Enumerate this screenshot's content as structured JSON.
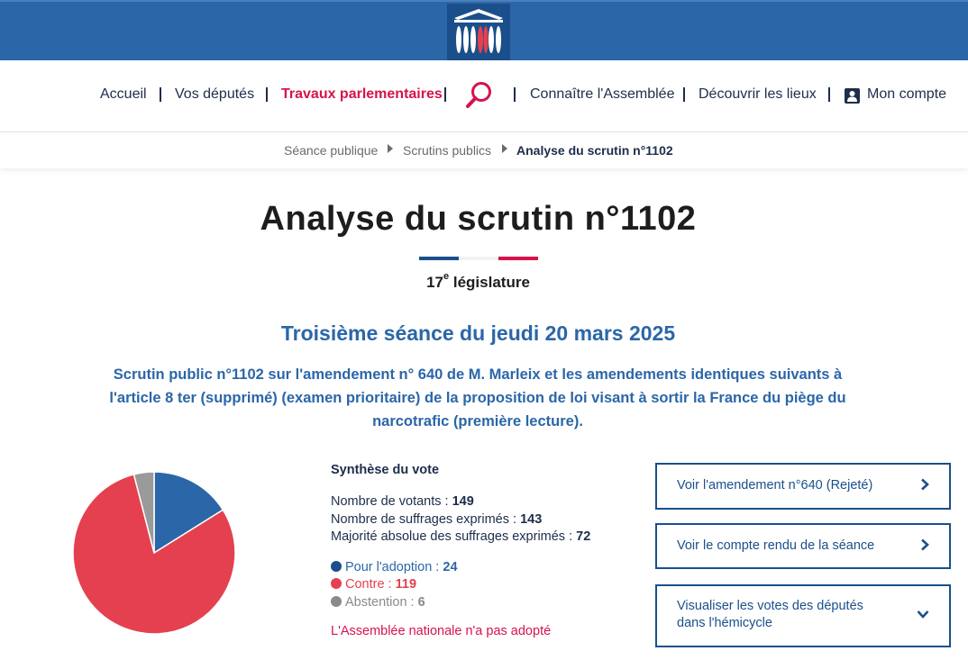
{
  "header": {
    "logo_icon": "assemblee-nationale-logo"
  },
  "nav": {
    "items": [
      "Accueil",
      "Vos députés",
      "Travaux parlementaires",
      "Connaître l'Assemblée",
      "Découvrir les lieux",
      "Mon compte"
    ],
    "search_icon": "search-icon",
    "account_icon": "user-icon",
    "active_color": "#d6134c"
  },
  "breadcrumb": {
    "items": [
      "Séance publique",
      "Scrutins publics",
      "Analyse du scrutin n°1102"
    ]
  },
  "page": {
    "title": "Analyse du scrutin n°1102",
    "legislature_num": "17",
    "legislature_sup": "e",
    "legislature_text": "législature",
    "seance": "Troisième séance du jeudi 20 mars 2025",
    "description": "Scrutin public n°1102 sur l'amendement n° 640 de M. Marleix et les amendements identiques suivants à l'article 8 ter (supprimé) (examen prioritaire) de la proposition de loi visant à sortir la France du piège du narcotrafic (première lecture)."
  },
  "synthese": {
    "title": "Synthèse du vote",
    "votants_label": "Nombre de votants :",
    "votants": "149",
    "exprimes_label": "Nombre de suffrages exprimés :",
    "exprimes": "143",
    "majorite_label": "Majorité absolue des suffrages exprimés :",
    "majorite": "72",
    "pour_label": "Pour l'adoption :",
    "pour": "24",
    "contre_label": "Contre :",
    "contre": "119",
    "abstention_label": "Abstention :",
    "abstention": "6",
    "result": "L'Assemblée nationale n'a pas adopté"
  },
  "colors": {
    "pour": "#2b66a8",
    "contre": "#e5404f",
    "abstention": "#9a9a9a",
    "brand": "#2b66a8",
    "accent": "#d6134c"
  },
  "chart_data": {
    "type": "pie",
    "categories": [
      "Pour l'adoption",
      "Contre",
      "Abstention"
    ],
    "values": [
      24,
      119,
      6
    ]
  },
  "actions": {
    "amendement": "Voir l'amendement n°640 (Rejeté)",
    "compte_rendu": "Voir le compte rendu de la séance",
    "hemicycle": "Visualiser les votes des députés dans l'hémicycle"
  }
}
